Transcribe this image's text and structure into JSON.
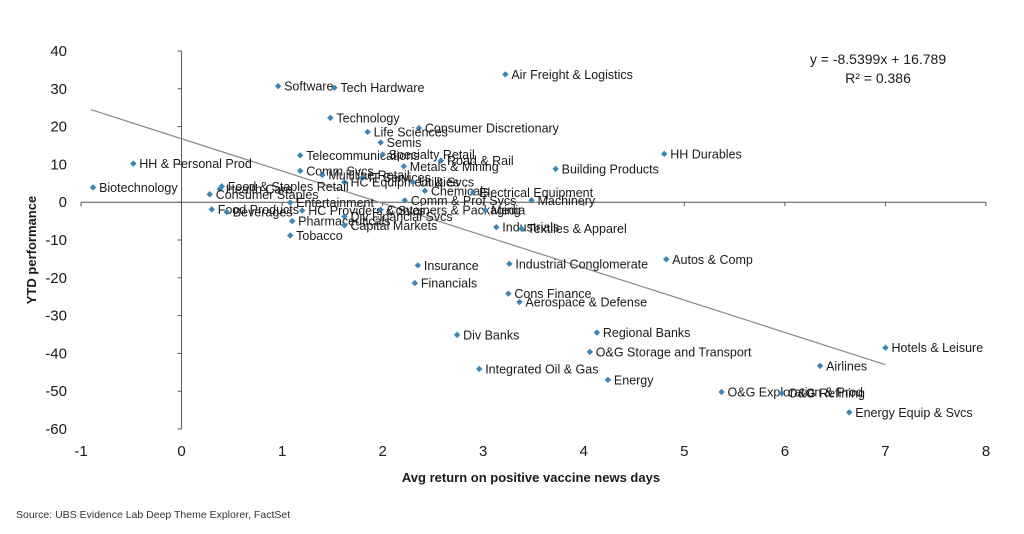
{
  "chart_data": {
    "type": "scatter",
    "title": "",
    "xlabel": "Avg return on positive vaccine news days",
    "ylabel": "YTD performance",
    "xlim": [
      -1,
      8
    ],
    "ylim": [
      -60,
      40
    ],
    "x_ticks": [
      -1,
      0,
      1,
      2,
      3,
      4,
      5,
      6,
      7,
      8
    ],
    "y_ticks": [
      40,
      30,
      20,
      10,
      0,
      -10,
      -20,
      -30,
      -40,
      -50,
      -60
    ],
    "grid": false,
    "marker_color": "#3a86b8",
    "trendline": {
      "slope": -8.5399,
      "intercept": 16.789,
      "x_range": [
        -0.9,
        7.0
      ],
      "equation_text": "y = -8.5399x + 16.789",
      "r2_text": "R² = 0.386",
      "color": "#888888"
    },
    "points": [
      {
        "label": "Air Freight & Logistics",
        "x": 3.22,
        "y": 33.8
      },
      {
        "label": "Software",
        "x": 0.96,
        "y": 30.7
      },
      {
        "label": "Tech Hardware",
        "x": 1.52,
        "y": 30.3
      },
      {
        "label": "Technology",
        "x": 1.48,
        "y": 22.3
      },
      {
        "label": "Consumer Discretionary",
        "x": 2.36,
        "y": 19.6
      },
      {
        "label": "Life Sciences",
        "x": 1.85,
        "y": 18.6
      },
      {
        "label": "Semis",
        "x": 1.98,
        "y": 15.8
      },
      {
        "label": "HH Durables",
        "x": 4.8,
        "y": 12.8
      },
      {
        "label": "Telecommunications",
        "x": 1.18,
        "y": 12.4
      },
      {
        "label": "Specialty Retail",
        "x": 2.0,
        "y": 12.6
      },
      {
        "label": "Road & Rail",
        "x": 2.58,
        "y": 11.0
      },
      {
        "label": "HH & Personal Prod",
        "x": -0.48,
        "y": 10.2
      },
      {
        "label": "Metals & Mining",
        "x": 2.21,
        "y": 9.5
      },
      {
        "label": "Building Products",
        "x": 3.72,
        "y": 8.8
      },
      {
        "label": "Comm Svcs",
        "x": 1.18,
        "y": 8.3
      },
      {
        "label": "Multiline Retail",
        "x": 1.4,
        "y": 7.2
      },
      {
        "label": "IT Services",
        "x": 1.8,
        "y": 6.5
      },
      {
        "label": "HC Equipment & Svcs",
        "x": 1.62,
        "y": 5.3
      },
      {
        "label": "Utilities",
        "x": 2.3,
        "y": 5.3
      },
      {
        "label": "Food & Staples Retail",
        "x": 0.4,
        "y": 4.2
      },
      {
        "label": "Biotechnology",
        "x": -0.88,
        "y": 3.9
      },
      {
        "label": "Health Care",
        "x": 0.38,
        "y": 3.5
      },
      {
        "label": "Chemicals",
        "x": 2.42,
        "y": 3.0
      },
      {
        "label": "Electrical Equipment",
        "x": 2.9,
        "y": 2.6
      },
      {
        "label": "Consumer Staples",
        "x": 0.28,
        "y": 2.1
      },
      {
        "label": "Comm & Prof Svcs",
        "x": 2.22,
        "y": 0.5
      },
      {
        "label": "Machinery",
        "x": 3.48,
        "y": 0.5
      },
      {
        "label": "Entertainment",
        "x": 1.08,
        "y": -0.1
      },
      {
        "label": "Food Products",
        "x": 0.3,
        "y": -1.9
      },
      {
        "label": "Beverages",
        "x": 0.45,
        "y": -2.6
      },
      {
        "label": "HC Providers & Svcs",
        "x": 1.2,
        "y": -2.2
      },
      {
        "label": "Containers & Packaging",
        "x": 1.98,
        "y": -2.0
      },
      {
        "label": "Media",
        "x": 3.02,
        "y": -2.1
      },
      {
        "label": "Div Financial Svcs",
        "x": 1.62,
        "y": -3.8
      },
      {
        "label": "Pharmaceuticals",
        "x": 1.1,
        "y": -5.0
      },
      {
        "label": "Capital Markets",
        "x": 1.62,
        "y": -6.1
      },
      {
        "label": "Industrials",
        "x": 3.13,
        "y": -6.6
      },
      {
        "label": "Textiles & Apparel",
        "x": 3.38,
        "y": -7.0
      },
      {
        "label": "Tobacco",
        "x": 1.08,
        "y": -8.8
      },
      {
        "label": "Autos & Comp",
        "x": 4.82,
        "y": -15.1
      },
      {
        "label": "Insurance",
        "x": 2.35,
        "y": -16.7
      },
      {
        "label": "Industrial Conglomerate",
        "x": 3.26,
        "y": -16.3
      },
      {
        "label": "Financials",
        "x": 2.32,
        "y": -21.4
      },
      {
        "label": "Cons Finance",
        "x": 3.25,
        "y": -24.2
      },
      {
        "label": "Aerospace & Defense",
        "x": 3.36,
        "y": -26.4
      },
      {
        "label": "Div Banks",
        "x": 2.74,
        "y": -35.1
      },
      {
        "label": "Regional Banks",
        "x": 4.13,
        "y": -34.5
      },
      {
        "label": "Hotels & Leisure",
        "x": 7.0,
        "y": -38.5
      },
      {
        "label": "O&G Storage and Transport",
        "x": 4.06,
        "y": -39.6
      },
      {
        "label": "Airlines",
        "x": 6.35,
        "y": -43.3
      },
      {
        "label": "Integrated Oil & Gas",
        "x": 2.96,
        "y": -44.1
      },
      {
        "label": "Energy",
        "x": 4.24,
        "y": -47.0
      },
      {
        "label": "O&G Exploration & Prod",
        "x": 5.37,
        "y": -50.2
      },
      {
        "label": "O&G Refining",
        "x": 5.97,
        "y": -50.5
      },
      {
        "label": "Energy Equip & Svcs",
        "x": 6.64,
        "y": -55.6
      }
    ]
  },
  "footer": {
    "source": "Source: UBS Evidence Lab Deep Theme Explorer, FactSet"
  }
}
